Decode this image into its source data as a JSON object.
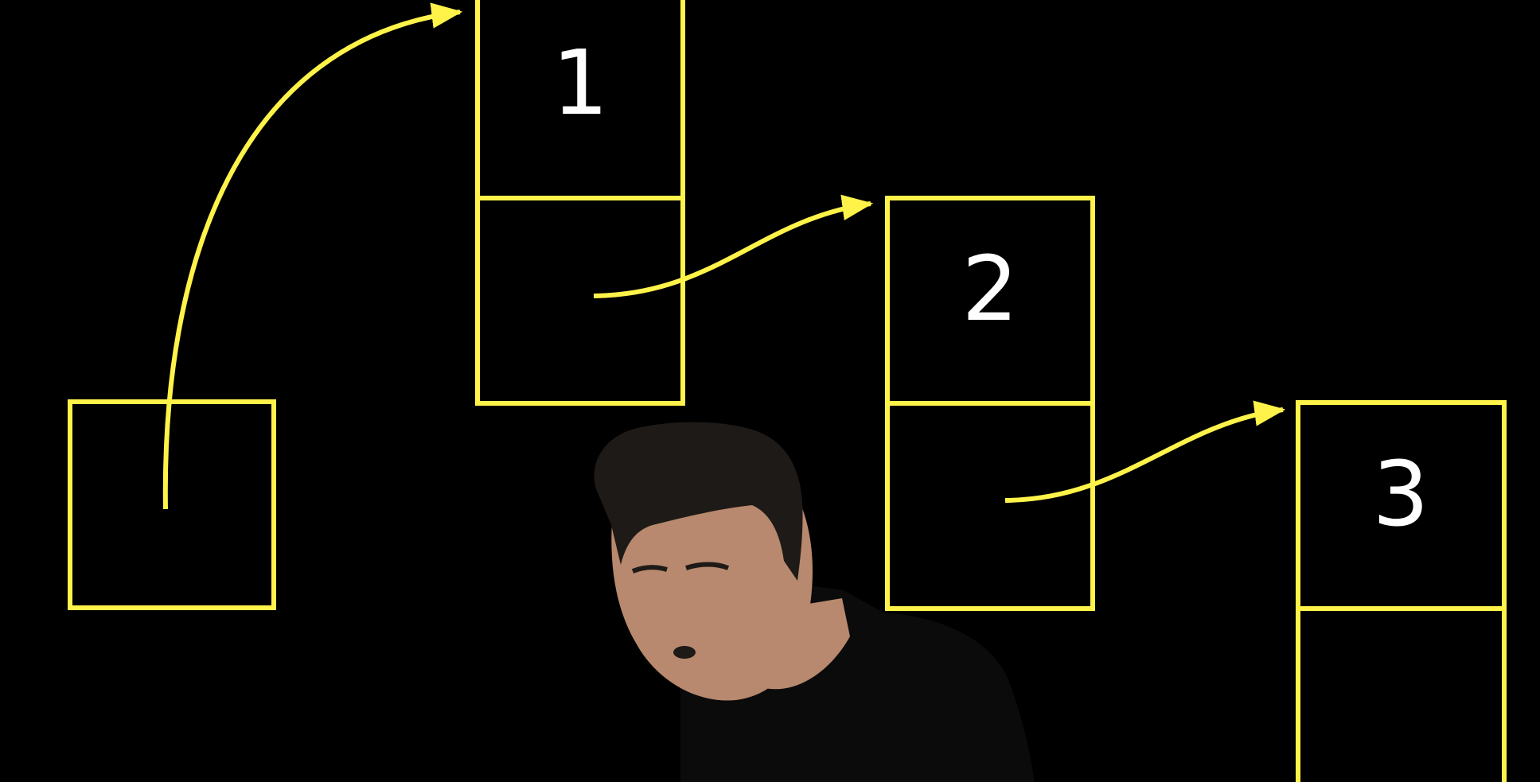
{
  "colors": {
    "background": "#000000",
    "line": "#FFF34A",
    "label": "#FFFFFF",
    "skin": "#B8896E",
    "hair": "#1E1A17",
    "shirt": "#0B0B0B"
  },
  "nodes": [
    {
      "label": "1"
    },
    {
      "label": "2"
    },
    {
      "label": "3"
    }
  ],
  "presenter": {
    "icon": "presenter-person"
  }
}
